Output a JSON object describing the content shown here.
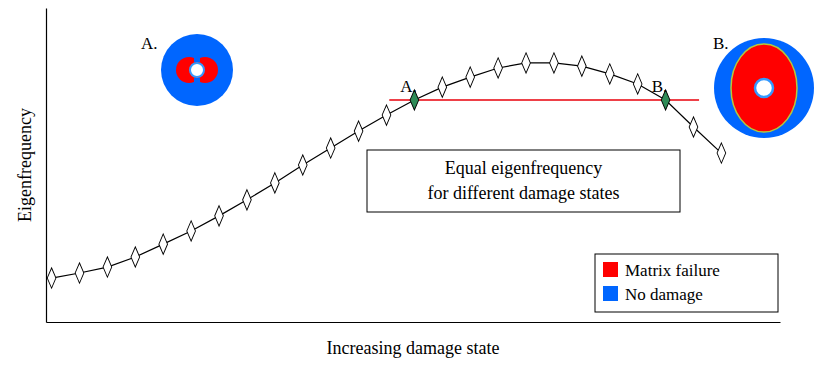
{
  "chart_data": {
    "type": "line",
    "x_label": "Increasing damage state",
    "y_label": "Eigenfrequency",
    "x": [
      0,
      1,
      2,
      3,
      4,
      5,
      6,
      7,
      8,
      9,
      10,
      11,
      12,
      13,
      14,
      15,
      16,
      17,
      18,
      19,
      20,
      21,
      22,
      23,
      24
    ],
    "values": [
      14.0,
      15.6,
      17.5,
      20.7,
      24.8,
      29.0,
      33.8,
      38.9,
      44.3,
      50.0,
      55.4,
      60.8,
      65.9,
      70.7,
      74.8,
      78.0,
      80.9,
      82.5,
      82.5,
      81.5,
      79.0,
      75.8,
      70.7,
      62.1,
      53.8
    ],
    "color": "#000000",
    "marker": "diamond",
    "xlim": [
      -0.2,
      26.1
    ],
    "ylim": [
      0,
      100
    ],
    "tick_labels": false,
    "grid": false,
    "highlights": {
      "indices": [
        13,
        22
      ],
      "labels": [
        "A.",
        "B."
      ],
      "color": "#2e8b57"
    },
    "reference_line": {
      "y": 70.7,
      "x": [
        12.1,
        23.2
      ],
      "color": "#e8000b"
    },
    "annotation": [
      "Equal eigenfrequency",
      "for different damage states"
    ],
    "insets": [
      "A.",
      "B."
    ],
    "legend": "lower right",
    "legend_items": [
      {
        "name": "Matrix failure",
        "color": "#ff0000"
      },
      {
        "name": "No damage",
        "color": "#0066ff"
      }
    ]
  }
}
